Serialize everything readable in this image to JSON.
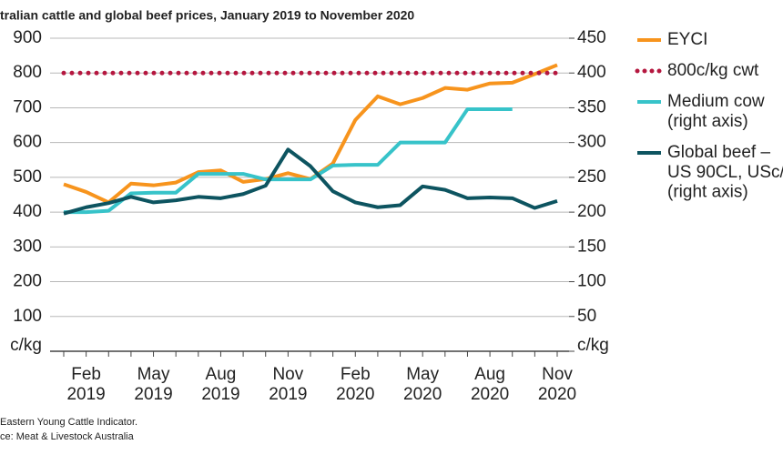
{
  "chart_data": {
    "type": "line",
    "title": "tralian cattle and global beef prices, January 2019 to November 2020",
    "notes": [
      "Eastern Young Cattle Indicator.",
      "ce: Meat & Livestock Australia"
    ],
    "categories": [
      null,
      "Feb\n2019",
      null,
      null,
      "May\n2019",
      null,
      null,
      "Aug\n2019",
      null,
      null,
      "Nov\n2019",
      null,
      null,
      "Feb\n2020",
      null,
      null,
      "May\n2020",
      null,
      null,
      "Aug\n2020",
      null,
      null,
      "Nov\n2020"
    ],
    "ylim": [
      0,
      900
    ],
    "yticks": [
      {
        "value": 0,
        "label": "c/kg"
      },
      100,
      200,
      300,
      400,
      500,
      600,
      700,
      800,
      900
    ],
    "y2lim": [
      0,
      450
    ],
    "y2ticks": [
      {
        "value": 0,
        "label": "c/kg"
      },
      50,
      100,
      150,
      200,
      250,
      300,
      350,
      400,
      450
    ],
    "grid": true,
    "legend": "right",
    "series": [
      {
        "name": "EYCI",
        "color": "#f7941d",
        "values": [
          480,
          458,
          428,
          482,
          477,
          485,
          515,
          520,
          487,
          495,
          512,
          495,
          540,
          665,
          733,
          710,
          728,
          757,
          752,
          770,
          772,
          797,
          823
        ]
      },
      {
        "name": "800c/kg cwt",
        "color": "#b5173f",
        "dash": true,
        "values": [
          800,
          800,
          800,
          800,
          800,
          800,
          800,
          800,
          800,
          800,
          800,
          800,
          800,
          800,
          800,
          800,
          800,
          800,
          800,
          800,
          800,
          800,
          800
        ]
      },
      {
        "name": "Medium cow\n(right axis)",
        "color": "#37c3c9",
        "axis": "y2",
        "values": [
          200,
          200,
          202,
          227,
          228,
          228,
          255,
          255,
          255,
          247,
          247,
          247,
          267,
          268,
          268,
          300,
          300,
          300,
          348,
          348,
          348,
          null,
          null
        ]
      },
      {
        "name": "Global beef –\nUS 90CL, USc/\n(right axis)",
        "color": "#0d5460",
        "axis": "y2",
        "values": [
          198,
          207,
          213,
          222,
          214,
          217,
          222,
          220,
          226,
          238,
          290,
          266,
          230,
          214,
          207,
          210,
          237,
          232,
          220,
          221,
          220,
          206,
          216
        ]
      }
    ]
  }
}
